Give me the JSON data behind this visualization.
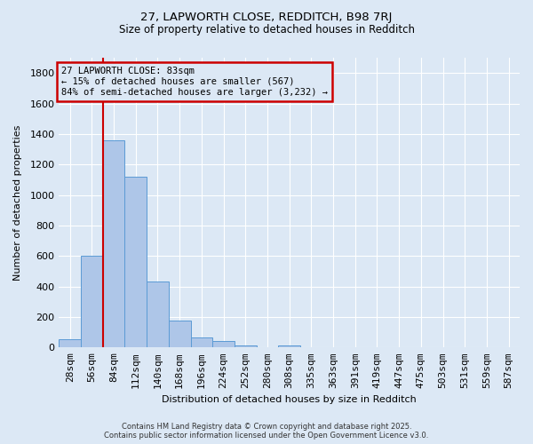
{
  "title_line1": "27, LAPWORTH CLOSE, REDDITCH, B98 7RJ",
  "title_line2": "Size of property relative to detached houses in Redditch",
  "xlabel": "Distribution of detached houses by size in Redditch",
  "ylabel": "Number of detached properties",
  "categories": [
    "28sqm",
    "56sqm",
    "84sqm",
    "112sqm",
    "140sqm",
    "168sqm",
    "196sqm",
    "224sqm",
    "252sqm",
    "280sqm",
    "308sqm",
    "335sqm",
    "363sqm",
    "391sqm",
    "419sqm",
    "447sqm",
    "475sqm",
    "503sqm",
    "531sqm",
    "559sqm",
    "587sqm"
  ],
  "values": [
    55,
    600,
    1360,
    1120,
    430,
    175,
    65,
    40,
    15,
    0,
    15,
    0,
    0,
    0,
    0,
    0,
    0,
    0,
    0,
    0,
    0
  ],
  "bar_color": "#aec6e8",
  "bar_edge_color": "#5b9bd5",
  "property_line_color": "#cc0000",
  "annotation_text": "27 LAPWORTH CLOSE: 83sqm\n← 15% of detached houses are smaller (567)\n84% of semi-detached houses are larger (3,232) →",
  "annotation_box_color": "#cc0000",
  "background_color": "#dce8f5",
  "grid_color": "#ffffff",
  "ylim": [
    0,
    1900
  ],
  "yticks": [
    0,
    200,
    400,
    600,
    800,
    1000,
    1200,
    1400,
    1600,
    1800
  ],
  "footer_line1": "Contains HM Land Registry data © Crown copyright and database right 2025.",
  "footer_line2": "Contains public sector information licensed under the Open Government Licence v3.0."
}
